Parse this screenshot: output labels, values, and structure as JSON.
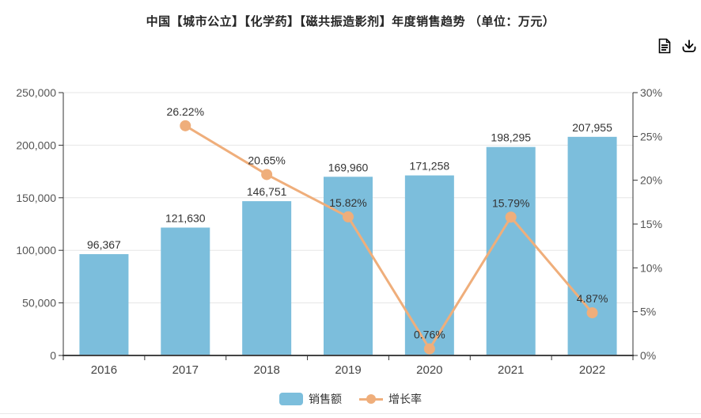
{
  "header": {
    "title": "中国【城市公立】【化学药】【磁共振造影剂】年度销售趋势 （单位：万元）",
    "icon_color": "#2a6197",
    "icons": [
      {
        "name": "report-icon"
      },
      {
        "name": "download-icon"
      }
    ]
  },
  "legend": {
    "items": [
      {
        "label": "销售额",
        "type": "bar",
        "color": "#7cbedc"
      },
      {
        "label": "增长率",
        "type": "line",
        "color": "#efae7b"
      }
    ]
  },
  "chart_data": {
    "type": "bar",
    "title": "中国【城市公立】【化学药】【磁共振造影剂】年度销售趋势 （单位：万元）",
    "categories": [
      "2016",
      "2017",
      "2018",
      "2019",
      "2020",
      "2021",
      "2022"
    ],
    "series": [
      {
        "name": "销售额",
        "type": "bar",
        "axis": "left",
        "color": "#7cbedc",
        "values": [
          96367,
          121630,
          146751,
          169960,
          171258,
          198295,
          207955
        ],
        "labels": [
          "96,367",
          "121,630",
          "146,751",
          "169,960",
          "171,258",
          "198,295",
          "207,955"
        ]
      },
      {
        "name": "增长率",
        "type": "line",
        "axis": "right",
        "color": "#efae7b",
        "values": [
          null,
          26.22,
          20.65,
          15.82,
          0.76,
          15.79,
          4.87
        ],
        "labels": [
          null,
          "26.22%",
          "20.65%",
          "15.82%",
          "0.76%",
          "15.79%",
          "4.87%"
        ]
      }
    ],
    "left_axis": {
      "min": 0,
      "max": 250000,
      "step": 50000,
      "tick_labels": [
        "0",
        "50,000",
        "100,000",
        "150,000",
        "200,000",
        "250,000"
      ]
    },
    "right_axis": {
      "min": 0,
      "max": 30,
      "step": 5,
      "tick_labels": [
        "0%",
        "5%",
        "10%",
        "15%",
        "20%",
        "25%",
        "30%"
      ]
    },
    "grid": true,
    "legend_position": "bottom",
    "colors": {
      "grid_line": "#e6e6e6",
      "axis_line": "#333333",
      "bottom_axis_line": "#444444",
      "tick_label": "#555555",
      "category_label": "#444444",
      "value_label": "#333333"
    }
  }
}
